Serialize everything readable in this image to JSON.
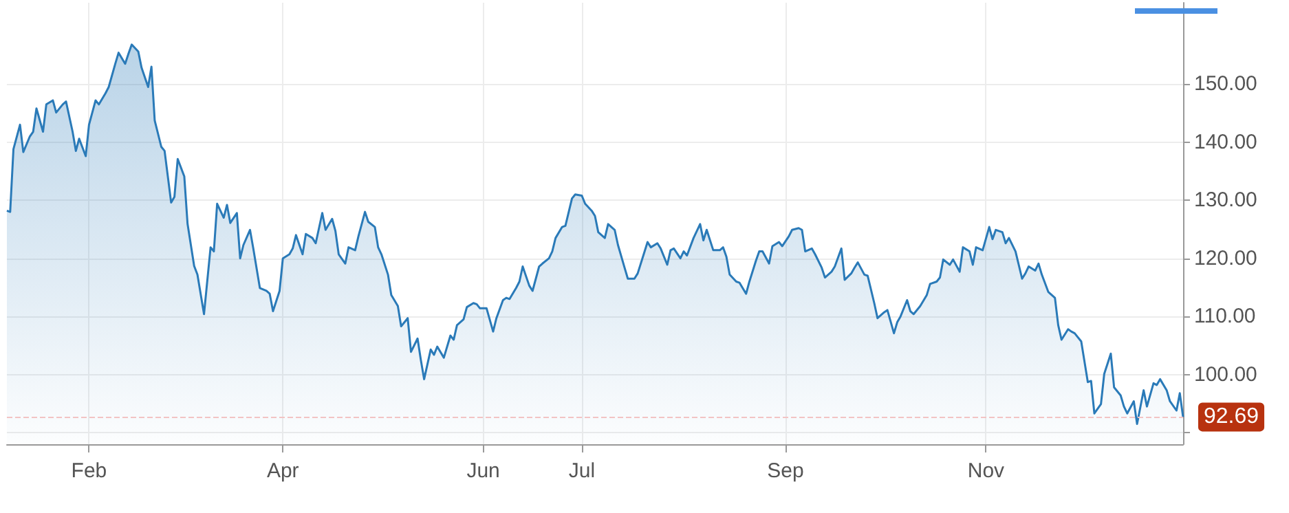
{
  "chart_data": {
    "type": "area",
    "x": [
      "--01-07",
      "--01-08",
      "--01-09",
      "--01-11",
      "--01-12",
      "--01-14",
      "--01-15",
      "--01-16",
      "--01-18",
      "--01-19",
      "--01-21",
      "--01-22",
      "--01-24",
      "--01-25",
      "--01-27",
      "--01-28",
      "--01-29",
      "--01-31",
      "--02-01",
      "--02-03",
      "--02-04",
      "--02-06",
      "--02-07",
      "--02-09",
      "--02-10",
      "--02-12",
      "--02-13",
      "--02-14",
      "--02-16",
      "--02-17",
      "--02-19",
      "--02-20",
      "--02-21",
      "--02-23",
      "--02-24",
      "--02-26",
      "--02-27",
      "--02-28",
      "--03-02",
      "--03-03",
      "--03-05",
      "--03-06",
      "--03-08",
      "--03-10",
      "--03-11",
      "--03-12",
      "--03-14",
      "--03-15",
      "--03-16",
      "--03-18",
      "--03-19",
      "--03-20",
      "--03-22",
      "--03-23",
      "--03-25",
      "--03-27",
      "--03-28",
      "--03-29",
      "--03-31",
      "--04-01",
      "--04-03",
      "--04-04",
      "--04-05",
      "--04-07",
      "--04-08",
      "--04-10",
      "--04-11",
      "--04-13",
      "--04-14",
      "--04-16",
      "--04-17",
      "--04-18",
      "--04-20",
      "--04-21",
      "--04-23",
      "--04-24",
      "--04-26",
      "--04-27",
      "--04-29",
      "--04-30",
      "--05-01",
      "--05-03",
      "--05-04",
      "--05-06",
      "--05-07",
      "--05-09",
      "--05-10",
      "--05-12",
      "--05-13",
      "--05-14",
      "--05-16",
      "--05-17",
      "--05-18",
      "--05-20",
      "--05-22",
      "--05-23",
      "--05-24",
      "--05-26",
      "--05-27",
      "--05-29",
      "--05-30",
      "--05-31",
      "--06-02",
      "--06-04",
      "--06-05",
      "--06-07",
      "--06-08",
      "--06-09",
      "--06-11",
      "--06-12",
      "--06-13",
      "--06-15",
      "--06-16",
      "--06-18",
      "--06-19",
      "--06-21",
      "--06-22",
      "--06-23",
      "--06-25",
      "--06-26",
      "--06-28",
      "--06-29",
      "--07-01",
      "--07-02",
      "--07-04",
      "--07-05",
      "--07-06",
      "--07-08",
      "--07-09",
      "--07-11",
      "--07-12",
      "--07-14",
      "--07-15",
      "--07-17",
      "--07-18",
      "--07-20",
      "--07-21",
      "--07-22",
      "--07-24",
      "--07-25",
      "--07-27",
      "--07-28",
      "--07-29",
      "--07-31",
      "--08-01",
      "--08-02",
      "--08-04",
      "--08-06",
      "--08-07",
      "--08-08",
      "--08-10",
      "--08-12",
      "--08-13",
      "--08-14",
      "--08-15",
      "--08-17",
      "--08-18",
      "--08-20",
      "--08-21",
      "--08-23",
      "--08-24",
      "--08-25",
      "--08-27",
      "--08-28",
      "--08-30",
      "--08-31",
      "--09-02",
      "--09-03",
      "--09-05",
      "--09-06",
      "--09-07",
      "--09-09",
      "--09-10",
      "--09-12",
      "--09-13",
      "--09-15",
      "--09-16",
      "--09-18",
      "--09-19",
      "--09-21",
      "--09-22",
      "--09-23",
      "--09-25",
      "--09-26",
      "--09-28",
      "--09-29",
      "--10-01",
      "--10-02",
      "--10-04",
      "--10-05",
      "--10-06",
      "--10-08",
      "--10-09",
      "--10-10",
      "--10-12",
      "--10-14",
      "--10-15",
      "--10-17",
      "--10-18",
      "--10-19",
      "--10-21",
      "--10-22",
      "--10-24",
      "--10-25",
      "--10-27",
      "--10-28",
      "--10-29",
      "--10-31",
      "--11-02",
      "--11-03",
      "--11-04",
      "--11-06",
      "--11-07",
      "--11-08",
      "--11-10",
      "--11-12",
      "--11-13",
      "--11-14",
      "--11-16",
      "--11-17",
      "--11-18",
      "--11-20",
      "--11-22",
      "--11-23",
      "--11-24",
      "--11-26",
      "--11-27",
      "--11-28",
      "--11-30",
      "--12-02",
      "--12-03",
      "--12-04",
      "--12-06",
      "--12-07",
      "--12-09",
      "--12-10",
      "--12-12",
      "--12-13",
      "--12-14",
      "--12-16",
      "--12-17",
      "--12-19",
      "--12-20",
      "--12-22",
      "--12-23",
      "--12-24",
      "--12-26",
      "--12-27",
      "--12-29",
      "--12-30",
      "--12-31"
    ],
    "series": [
      {
        "color": "#2a7ab8",
        "values": [
          128.2,
          128,
          138.8,
          143,
          138.3,
          141,
          141.8,
          145.8,
          141.8,
          146.5,
          147.2,
          145.1,
          146.5,
          147,
          141.8,
          138.5,
          140.6,
          137.6,
          143,
          147.2,
          146.5,
          148.4,
          149.5,
          153.5,
          155.4,
          153.5,
          155.2,
          156.8,
          155.6,
          152.8,
          149.5,
          153,
          143.7,
          139.2,
          138.5,
          129.6,
          130.6,
          137.1,
          134.1,
          125.9,
          118.7,
          117.2,
          110.4,
          121.9,
          121.2,
          129.4,
          127,
          129.2,
          126.1,
          127.8,
          120,
          122.3,
          124.9,
          121.7,
          114.9,
          114.4,
          113.9,
          110.9,
          114.4,
          120,
          120.7,
          121.7,
          124,
          120.7,
          124.2,
          123.5,
          122.6,
          127.8,
          124.9,
          126.8,
          124.7,
          120.7,
          119.1,
          121.9,
          121.4,
          123.8,
          128,
          126.3,
          125.4,
          121.9,
          120.7,
          117.2,
          113.7,
          111.8,
          108.3,
          109.7,
          103.9,
          106.2,
          102.5,
          99.2,
          104.3,
          103.4,
          104.8,
          102.9,
          106.7,
          106,
          108.5,
          109.5,
          111.6,
          112.3,
          112.1,
          111.4,
          111.4,
          107.4,
          109.7,
          112.8,
          113.2,
          113,
          114.9,
          116,
          118.6,
          115.3,
          114.4,
          118.6,
          119.1,
          120,
          121.2,
          123.5,
          125.4,
          125.6,
          130.3,
          131,
          130.8,
          129.4,
          128.2,
          127.3,
          124.5,
          123.5,
          125.9,
          124.9,
          122.3,
          118.4,
          116.5,
          116.5,
          117.4,
          121,
          122.8,
          121.9,
          122.6,
          121.7,
          118.9,
          121.4,
          121.7,
          120,
          121.2,
          120.5,
          123.5,
          125.9,
          123.1,
          124.9,
          121.4,
          121.4,
          121.9,
          120.3,
          117.2,
          116,
          115.8,
          113.9,
          116,
          119.6,
          121.2,
          121.2,
          119.1,
          122.1,
          122.8,
          122.1,
          123.8,
          124.9,
          125.2,
          124.9,
          121.2,
          121.7,
          120.7,
          118.4,
          116.7,
          117.7,
          118.6,
          121.7,
          116.3,
          117.4,
          118.4,
          119.3,
          117.2,
          117,
          112.3,
          109.7,
          110.7,
          111.1,
          107.1,
          109,
          110,
          112.8,
          110.9,
          110.4,
          111.8,
          113.7,
          115.6,
          116,
          116.7,
          119.8,
          118.9,
          119.8,
          117.7,
          121.9,
          121.2,
          118.9,
          121.9,
          121.4,
          125.4,
          123.3,
          124.9,
          124.5,
          122.6,
          123.5,
          121.2,
          116.5,
          117.4,
          118.6,
          117.9,
          119.1,
          117.2,
          114.2,
          113.2,
          108.5,
          106,
          107.8,
          107.4,
          107.1,
          105.7,
          98.7,
          98.9,
          93.3,
          94.9,
          100.1,
          103.6,
          97.8,
          96.4,
          94.5,
          93.3,
          95.4,
          91.5,
          97.3,
          94.5,
          98.5,
          98.2,
          99.2,
          97.3,
          95.4,
          93.8,
          96.8,
          92.69
        ]
      }
    ],
    "xlim": [
      "--01-07",
      "--12-31"
    ],
    "xticks": [
      {
        "value": "--02-01",
        "label": "Feb"
      },
      {
        "value": "--04-01",
        "label": "Apr"
      },
      {
        "value": "--06-01",
        "label": "Jun"
      },
      {
        "value": "--07-01",
        "label": "Jul"
      },
      {
        "value": "--09-01",
        "label": "Sep"
      },
      {
        "value": "--11-01",
        "label": "Nov"
      }
    ],
    "ylim": [
      88,
      164
    ],
    "yticks": [
      {
        "value": 90,
        "label": null
      },
      {
        "value": 100,
        "label": "100.00"
      },
      {
        "value": 110,
        "label": "110.00"
      },
      {
        "value": 120,
        "label": "120.00"
      },
      {
        "value": 130,
        "label": "130.00"
      },
      {
        "value": 140,
        "label": "140.00"
      },
      {
        "value": 150,
        "label": "150.00"
      }
    ],
    "ref_lines": [
      {
        "axis": "y",
        "value": 92.69,
        "color": "#f2c4c4",
        "line_style": "dashed"
      }
    ],
    "annotations": [
      {
        "text": "92.69",
        "x": "--12-31",
        "y": 92.69
      }
    ],
    "grid": true,
    "marker": "none",
    "line_style": "solid"
  }
}
